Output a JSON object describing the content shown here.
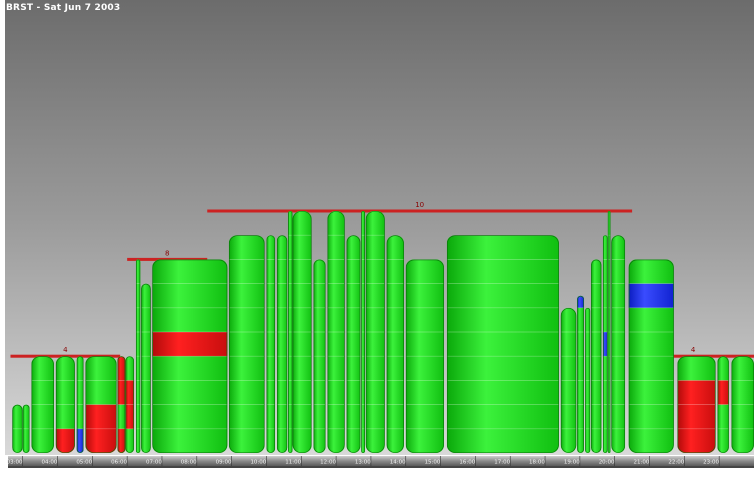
{
  "title": "BRST - Sat Jun 7 2003",
  "chart_data": {
    "type": "bar",
    "title": "BRST - Sat Jun 7 2003",
    "ylim": [
      0,
      10.5
    ],
    "xlim": [
      2.55,
      24.0
    ],
    "x_ticks": [
      "03:00",
      "04:00",
      "05:00",
      "06:00",
      "07:00",
      "08:00",
      "09:00",
      "10:00",
      "11:00",
      "12:00",
      "13:00",
      "14:00",
      "15:00",
      "16:00",
      "17:00",
      "18:00",
      "19:00",
      "20:00",
      "21:00",
      "22:00",
      "23:00"
    ],
    "colors": {
      "green": "#22dd22",
      "red": "#dd1111",
      "blue": "#1a2ee8",
      "line": "#cc2222"
    },
    "level_lines": [
      {
        "label": "4",
        "value": 4,
        "from": 2.65,
        "to": 5.8
      },
      {
        "label": "8",
        "value": 8,
        "from": 6.0,
        "to": 8.3
      },
      {
        "label": "10",
        "value": 10,
        "from": 8.3,
        "to": 20.5
      },
      {
        "label": "4",
        "value": 4,
        "from": 20.5,
        "to": 24.0
      }
    ],
    "series": [
      {
        "start": 2.7,
        "end": 3.0,
        "value": 2,
        "segments": []
      },
      {
        "start": 3.0,
        "end": 3.2,
        "value": 2,
        "segments": []
      },
      {
        "start": 3.25,
        "end": 3.9,
        "value": 4,
        "segments": []
      },
      {
        "start": 3.95,
        "end": 4.5,
        "value": 4,
        "segments": [
          {
            "from": 0,
            "to": 1,
            "color": "red"
          }
        ]
      },
      {
        "start": 4.55,
        "end": 4.75,
        "value": 4,
        "segments": [
          {
            "from": 0,
            "to": 1,
            "color": "blue"
          }
        ]
      },
      {
        "start": 4.8,
        "end": 5.7,
        "value": 4,
        "segments": [
          {
            "from": 0,
            "to": 2,
            "color": "red"
          }
        ]
      },
      {
        "start": 5.72,
        "end": 5.95,
        "value": 4,
        "segments": [
          {
            "from": 0,
            "to": 1,
            "color": "red"
          },
          {
            "from": 2,
            "to": 4,
            "color": "red"
          }
        ]
      },
      {
        "start": 5.95,
        "end": 6.2,
        "value": 4,
        "segments": [
          {
            "from": 1,
            "to": 3,
            "color": "red"
          }
        ]
      },
      {
        "start": 6.25,
        "end": 6.38,
        "value": 8,
        "segments": []
      },
      {
        "start": 6.4,
        "end": 6.68,
        "value": 7,
        "segments": []
      },
      {
        "start": 6.72,
        "end": 8.88,
        "value": 8,
        "segments": [
          {
            "from": 4,
            "to": 5,
            "color": "red"
          }
        ]
      },
      {
        "start": 8.92,
        "end": 9.95,
        "value": 9,
        "segments": []
      },
      {
        "start": 10.0,
        "end": 10.25,
        "value": 9,
        "segments": []
      },
      {
        "start": 10.3,
        "end": 10.6,
        "value": 9,
        "segments": []
      },
      {
        "start": 10.62,
        "end": 10.75,
        "value": 10,
        "segments": []
      },
      {
        "start": 10.75,
        "end": 11.3,
        "value": 10,
        "segments": []
      },
      {
        "start": 11.35,
        "end": 11.7,
        "value": 8,
        "segments": []
      },
      {
        "start": 11.75,
        "end": 12.25,
        "value": 10,
        "segments": []
      },
      {
        "start": 12.3,
        "end": 12.7,
        "value": 9,
        "segments": []
      },
      {
        "start": 12.72,
        "end": 12.83,
        "value": 10,
        "segments": []
      },
      {
        "start": 12.85,
        "end": 13.4,
        "value": 10,
        "segments": []
      },
      {
        "start": 13.45,
        "end": 13.95,
        "value": 9,
        "segments": []
      },
      {
        "start": 14.0,
        "end": 15.1,
        "value": 8,
        "segments": []
      },
      {
        "start": 15.18,
        "end": 18.4,
        "value": 9,
        "segments": []
      },
      {
        "start": 18.45,
        "end": 18.9,
        "value": 6,
        "segments": []
      },
      {
        "start": 18.92,
        "end": 19.12,
        "value": 6.5,
        "segments": [
          {
            "from": 6,
            "to": 6.6,
            "color": "blue"
          }
        ]
      },
      {
        "start": 19.15,
        "end": 19.3,
        "value": 6,
        "segments": []
      },
      {
        "start": 19.32,
        "end": 19.62,
        "value": 8,
        "segments": []
      },
      {
        "start": 19.66,
        "end": 19.8,
        "value": 9,
        "segments": [
          {
            "from": 4,
            "to": 5,
            "color": "blue"
          }
        ]
      },
      {
        "start": 19.8,
        "end": 19.88,
        "value": 10,
        "segments": []
      },
      {
        "start": 19.9,
        "end": 20.3,
        "value": 9,
        "segments": []
      },
      {
        "start": 20.4,
        "end": 21.7,
        "value": 8,
        "segments": [
          {
            "from": 6,
            "to": 7,
            "color": "blue"
          }
        ]
      },
      {
        "start": 21.8,
        "end": 22.9,
        "value": 4,
        "segments": [
          {
            "from": 0,
            "to": 3,
            "color": "red"
          }
        ]
      },
      {
        "start": 22.95,
        "end": 23.28,
        "value": 4,
        "segments": [
          {
            "from": 2,
            "to": 3,
            "color": "red"
          }
        ]
      },
      {
        "start": 23.35,
        "end": 24.0,
        "value": 4,
        "segments": []
      }
    ]
  }
}
